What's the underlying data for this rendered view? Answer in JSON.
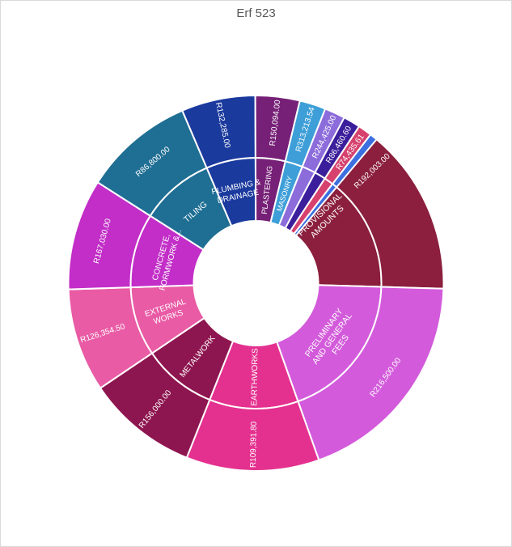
{
  "chart_data": {
    "type": "sunburst",
    "title": "Erf 523",
    "segments": [
      {
        "name": "PROVISIONAL AMOUNTS",
        "value": 192003.0,
        "value_label": "R192,003.00",
        "color": "#8B1F3D"
      },
      {
        "name": "PRELIMINARY AND GENERAL FEES",
        "value": 216500.0,
        "value_label": "R216,500.00",
        "color": "#D35BDB"
      },
      {
        "name": "EARTHWORKS",
        "value": 109391.8,
        "value_label": "R109,391.80",
        "color": "#E4318F"
      },
      {
        "name": "METALWORK",
        "value": 156000.0,
        "value_label": "R156,000.00",
        "color": "#8E1650"
      },
      {
        "name": "EXTERNAL WORKS",
        "value": 126354.5,
        "value_label": "R126,354.50",
        "color": "#E95BA5"
      },
      {
        "name": "CONCRETE, FORMWORK &...",
        "value": 167030.0,
        "value_label": "R167,030.00",
        "color": "#C22EC7"
      },
      {
        "name": "TILING",
        "value": 86800.0,
        "value_label": "R86,800.00",
        "color": "#1F6E93"
      },
      {
        "name": "PLUMBING & DRAINAGE",
        "value": 132285.0,
        "value_label": "R132,285.00",
        "color": "#1B3A9E"
      },
      {
        "name": "PLASTERING",
        "value": 150094.0,
        "value_label": "R150,094.00",
        "color": "#762077"
      },
      {
        "name": "MASONRY",
        "value": 313213.54,
        "value_label": "R313,213.54",
        "color": "#3E9FD8"
      },
      {
        "name": "",
        "value": 244425.0,
        "value_label": "R244,425.00",
        "color": "#8C6CDB"
      },
      {
        "name": "",
        "value": 86460.6,
        "value_label": "R86,460.60",
        "color": "#3B1E9B"
      },
      {
        "name": "",
        "value": 74435.61,
        "value_label": "R74,435.61",
        "color": "#D6416E"
      },
      {
        "name": "",
        "value": 0,
        "value_label": "",
        "color": "#3C6FE0"
      }
    ]
  }
}
